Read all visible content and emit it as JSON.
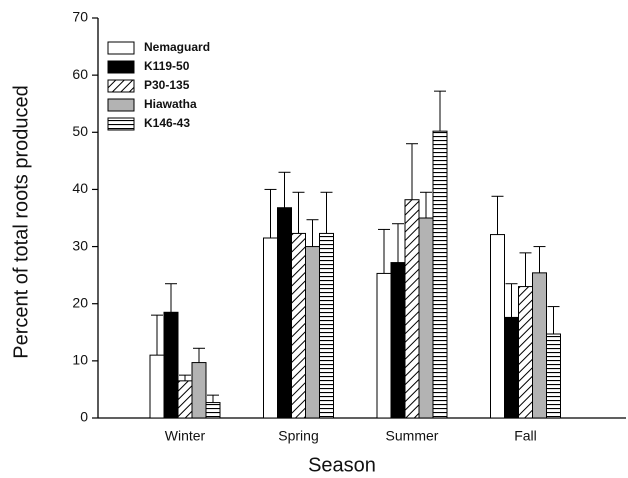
{
  "chart_data": {
    "type": "bar",
    "x_label": "Season",
    "y_label": "Percent of total roots produced",
    "categories": [
      "Winter",
      "Spring",
      "Summer",
      "Fall"
    ],
    "ylim": [
      0,
      70
    ],
    "yticks": [
      0,
      10,
      20,
      30,
      40,
      50,
      60,
      70
    ],
    "legend_position": "upper left",
    "series": [
      {
        "name": "Nemaguard",
        "color": "#ffffff",
        "pattern": "solid",
        "values": [
          11,
          31.5,
          25.3,
          32.1
        ],
        "errors": [
          7,
          8.5,
          7.7,
          6.7
        ]
      },
      {
        "name": "K119-50",
        "color": "#000000",
        "pattern": "solid",
        "values": [
          18.5,
          36.8,
          27.2,
          17.6
        ],
        "errors": [
          5,
          6.2,
          6.8,
          5.9
        ]
      },
      {
        "name": "P30-135",
        "color": "#ffffff",
        "pattern": "diagonal",
        "values": [
          6.5,
          32.3,
          38.2,
          23
        ],
        "errors": [
          1,
          7.2,
          9.8,
          5.9
        ]
      },
      {
        "name": "Hiawatha",
        "color": "#b3b3b3",
        "pattern": "solid",
        "values": [
          9.7,
          30,
          35,
          25.4
        ],
        "errors": [
          2.5,
          4.7,
          4.5,
          4.6
        ]
      },
      {
        "name": "K146-43",
        "color": "#ffffff",
        "pattern": "horizontal",
        "values": [
          2.7,
          32.3,
          50.2,
          14.7
        ],
        "errors": [
          1.3,
          7.2,
          7,
          4.8
        ]
      }
    ]
  }
}
